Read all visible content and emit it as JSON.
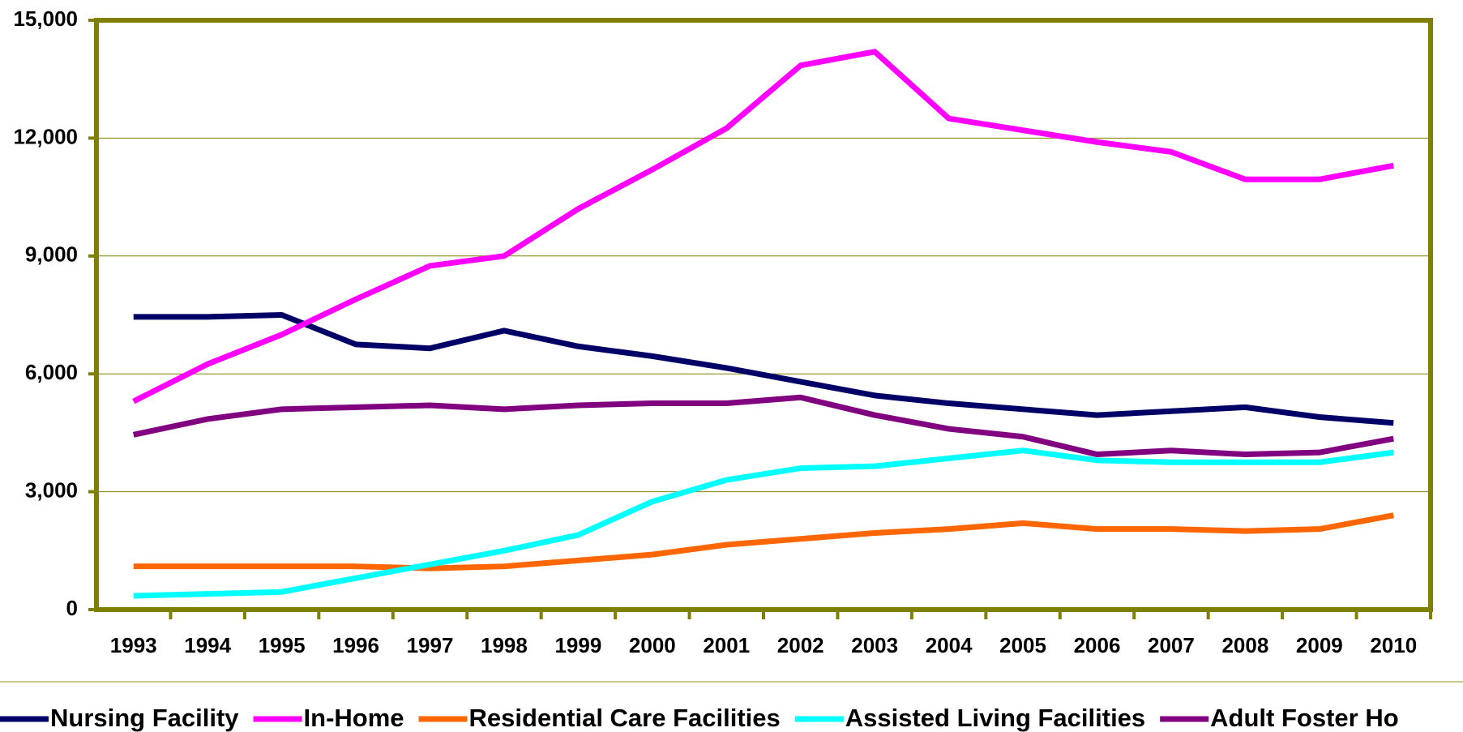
{
  "chart_data": {
    "type": "line",
    "categories": [
      "1993",
      "1994",
      "1995",
      "1996",
      "1997",
      "1998",
      "1999",
      "2000",
      "2001",
      "2002",
      "2003",
      "2004",
      "2005",
      "2006",
      "2007",
      "2008",
      "2009",
      "2010"
    ],
    "series": [
      {
        "name": "Nursing Facility",
        "color": "#000066",
        "values": [
          7450,
          7450,
          7500,
          6750,
          6650,
          7100,
          6700,
          6450,
          6150,
          5800,
          5450,
          5250,
          5100,
          4950,
          5050,
          5150,
          4900,
          4750
        ]
      },
      {
        "name": "In-Home",
        "color": "#ff00ff",
        "values": [
          5300,
          6250,
          7000,
          7900,
          8750,
          9000,
          10200,
          11200,
          12250,
          13850,
          14200,
          12500,
          12200,
          11900,
          11650,
          10950,
          10950,
          11300
        ]
      },
      {
        "name": "Residential Care Facilities",
        "color": "#ff6600",
        "values": [
          1100,
          1100,
          1100,
          1100,
          1050,
          1100,
          1250,
          1400,
          1650,
          1800,
          1950,
          2050,
          2200,
          2050,
          2050,
          2000,
          2050,
          2400
        ]
      },
      {
        "name": "Assisted Living Facilities",
        "color": "#00ffff",
        "values": [
          350,
          400,
          450,
          800,
          1150,
          1500,
          1900,
          2750,
          3300,
          3600,
          3650,
          3850,
          4050,
          3800,
          3750,
          3750,
          3750,
          4000
        ]
      },
      {
        "name": "Adult Foster Ho",
        "color": "#800080",
        "values": [
          4450,
          4850,
          5100,
          5150,
          5200,
          5100,
          5200,
          5250,
          5250,
          5400,
          4950,
          4600,
          4400,
          3950,
          4050,
          3950,
          4000,
          4350
        ]
      }
    ],
    "ylim": [
      0,
      15000
    ],
    "yticks": [
      0,
      {
        "value": 3000,
        "label": "3,000"
      },
      {
        "value": 6000,
        "label": "6,000"
      },
      {
        "value": 9000,
        "label": "9,000"
      },
      {
        "value": 12000,
        "label": "12,000"
      },
      {
        "value": 15000,
        "label": "15,000"
      }
    ],
    "grid": true,
    "legend": "bottom"
  }
}
